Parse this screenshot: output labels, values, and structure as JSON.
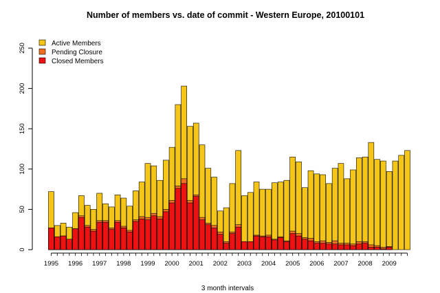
{
  "chart_data": {
    "type": "bar",
    "stacked": true,
    "title": "Number of members vs. date of commit - Western Europe,  20100101",
    "xlabel": "3 month intervals",
    "ylabel": "",
    "ylim": [
      0,
      250
    ],
    "yticks": [
      0,
      50,
      100,
      150,
      200,
      250
    ],
    "year_labels": [
      "1995",
      "1996",
      "1997",
      "1998",
      "1999",
      "2000",
      "2001",
      "2002",
      "2003",
      "2004",
      "2005",
      "2006",
      "2007",
      "2008",
      "2009"
    ],
    "legend_position": "top-left",
    "grid": false,
    "series": [
      {
        "name": "Active Members",
        "color": "#F5C518"
      },
      {
        "name": "Pending Closure",
        "color": "#F07020"
      },
      {
        "name": "Closed Members",
        "color": "#EE1111"
      }
    ],
    "totals": [
      72,
      30,
      33,
      28,
      46,
      67,
      55,
      50,
      70,
      57,
      53,
      68,
      64,
      54,
      73,
      84,
      107,
      104,
      86,
      111,
      127,
      180,
      203,
      153,
      157,
      130,
      101,
      90,
      48,
      52,
      82,
      123,
      67,
      71,
      84,
      75,
      75,
      83,
      84,
      86,
      115,
      109,
      77,
      98,
      94,
      93,
      82,
      101,
      107,
      88,
      99,
      114,
      115,
      133,
      112,
      110,
      97,
      110,
      117,
      123
    ],
    "pending": [
      0,
      0,
      0,
      0,
      0,
      2,
      2,
      2,
      2,
      2,
      2,
      2,
      2,
      2,
      2,
      3,
      3,
      3,
      3,
      3,
      3,
      3,
      6,
      3,
      2,
      3,
      2,
      3,
      3,
      2,
      2,
      3,
      0,
      0,
      1,
      1,
      2,
      1,
      1,
      1,
      3,
      3,
      2,
      3,
      2,
      3,
      2,
      4,
      2,
      2,
      2,
      3,
      2,
      3,
      2,
      2,
      1,
      0,
      0,
      0
    ],
    "closed": [
      27,
      16,
      17,
      13,
      26,
      40,
      28,
      23,
      34,
      34,
      25,
      34,
      27,
      22,
      35,
      38,
      37,
      42,
      38,
      47,
      58,
      76,
      82,
      58,
      66,
      37,
      31,
      27,
      19,
      8,
      20,
      28,
      10,
      10,
      17,
      16,
      16,
      12,
      15,
      10,
      20,
      17,
      13,
      11,
      8,
      8,
      7,
      7,
      6,
      6,
      5,
      7,
      8,
      3,
      3,
      1,
      3,
      0,
      0,
      0
    ]
  }
}
